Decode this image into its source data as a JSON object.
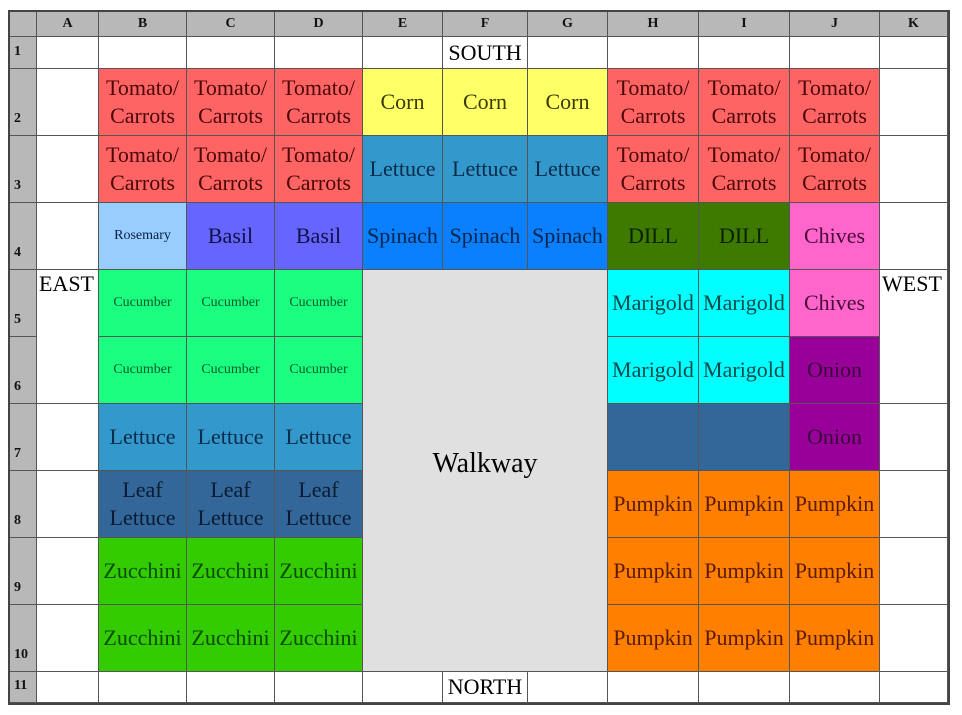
{
  "columns": [
    "A",
    "B",
    "C",
    "D",
    "E",
    "F",
    "G",
    "H",
    "I",
    "J",
    "K"
  ],
  "rows": [
    "1",
    "2",
    "3",
    "4",
    "5",
    "6",
    "7",
    "8",
    "9",
    "10",
    "11"
  ],
  "palette": {
    "tomato": {
      "bg": "#fe6464",
      "fg": "#4a0808"
    },
    "corn": {
      "bg": "#ffff66",
      "fg": "#3a3a00"
    },
    "lettuce": {
      "bg": "#3399cc",
      "fg": "#0a2a4a"
    },
    "rosemary": {
      "bg": "#99ccff",
      "fg": "#0a2040"
    },
    "basil": {
      "bg": "#6666ff",
      "fg": "#10104a"
    },
    "spinach": {
      "bg": "#0a80ff",
      "fg": "#04254a"
    },
    "dill": {
      "bg": "#3f7a00",
      "fg": "#0a2000"
    },
    "chives": {
      "bg": "#ff66cc",
      "fg": "#4a0a3a"
    },
    "cucumber": {
      "bg": "#1aff80",
      "fg": "#0a5a2a"
    },
    "marigold": {
      "bg": "#00ffff",
      "fg": "#0a4a4a"
    },
    "steel": {
      "bg": "#336699",
      "fg": "#0a1a30"
    },
    "onion": {
      "bg": "#990099",
      "fg": "#3a003a"
    },
    "zucchini": {
      "bg": "#33cc00",
      "fg": "#0a4a00"
    },
    "pumpkin": {
      "bg": "#ff8000",
      "fg": "#5a1a00"
    },
    "walkway": {
      "bg": "#e0e0e0",
      "fg": "#000000"
    },
    "label": {
      "bg": "#ffffff",
      "fg": "#000000"
    }
  },
  "cells": [
    {
      "ref": "F1",
      "text": "SOUTH",
      "kind": "label"
    },
    {
      "ref": "B2",
      "text": "Tomato/ Carrots",
      "kind": "tomato"
    },
    {
      "ref": "C2",
      "text": "Tomato/ Carrots",
      "kind": "tomato"
    },
    {
      "ref": "D2",
      "text": "Tomato/ Carrots",
      "kind": "tomato"
    },
    {
      "ref": "E2",
      "text": "Corn",
      "kind": "corn"
    },
    {
      "ref": "F2",
      "text": "Corn",
      "kind": "corn"
    },
    {
      "ref": "G2",
      "text": "Corn",
      "kind": "corn"
    },
    {
      "ref": "H2",
      "text": "Tomato/ Carrots",
      "kind": "tomato"
    },
    {
      "ref": "I2",
      "text": "Tomato/ Carrots",
      "kind": "tomato"
    },
    {
      "ref": "J2",
      "text": "Tomato/ Carrots",
      "kind": "tomato"
    },
    {
      "ref": "B3",
      "text": "Tomato/ Carrots",
      "kind": "tomato"
    },
    {
      "ref": "C3",
      "text": "Tomato/ Carrots",
      "kind": "tomato"
    },
    {
      "ref": "D3",
      "text": "Tomato/ Carrots",
      "kind": "tomato"
    },
    {
      "ref": "E3",
      "text": "Lettuce",
      "kind": "lettuce"
    },
    {
      "ref": "F3",
      "text": "Lettuce",
      "kind": "lettuce"
    },
    {
      "ref": "G3",
      "text": "Lettuce",
      "kind": "lettuce"
    },
    {
      "ref": "H3",
      "text": "Tomato/ Carrots",
      "kind": "tomato"
    },
    {
      "ref": "I3",
      "text": "Tomato/ Carrots",
      "kind": "tomato"
    },
    {
      "ref": "J3",
      "text": "Tomato/ Carrots",
      "kind": "tomato"
    },
    {
      "ref": "B4",
      "text": "Rosemary",
      "kind": "rosemary",
      "small": true
    },
    {
      "ref": "C4",
      "text": "Basil",
      "kind": "basil"
    },
    {
      "ref": "D4",
      "text": "Basil",
      "kind": "basil"
    },
    {
      "ref": "E4",
      "text": "Spinach",
      "kind": "spinach"
    },
    {
      "ref": "F4",
      "text": "Spinach",
      "kind": "spinach"
    },
    {
      "ref": "G4",
      "text": "Spinach",
      "kind": "spinach"
    },
    {
      "ref": "H4",
      "text": "DILL",
      "kind": "dill"
    },
    {
      "ref": "I4",
      "text": "DILL",
      "kind": "dill"
    },
    {
      "ref": "J4",
      "text": "Chives",
      "kind": "chives"
    },
    {
      "ref": "A5:A6",
      "text": "EAST",
      "kind": "label",
      "top": true
    },
    {
      "ref": "B5",
      "text": "Cucumber",
      "kind": "cucumber",
      "small": true
    },
    {
      "ref": "C5",
      "text": "Cucumber",
      "kind": "cucumber",
      "small": true
    },
    {
      "ref": "D5",
      "text": "Cucumber",
      "kind": "cucumber",
      "small": true
    },
    {
      "ref": "E5:G10",
      "text": "Walkway",
      "kind": "walkway",
      "walk": true
    },
    {
      "ref": "H5",
      "text": "Marigold",
      "kind": "marigold"
    },
    {
      "ref": "I5",
      "text": "Marigold",
      "kind": "marigold"
    },
    {
      "ref": "J5",
      "text": "Chives",
      "kind": "chives"
    },
    {
      "ref": "K5:K6",
      "text": "WEST",
      "kind": "label",
      "top": true
    },
    {
      "ref": "B6",
      "text": "Cucumber",
      "kind": "cucumber",
      "small": true
    },
    {
      "ref": "C6",
      "text": "Cucumber",
      "kind": "cucumber",
      "small": true
    },
    {
      "ref": "D6",
      "text": "Cucumber",
      "kind": "cucumber",
      "small": true
    },
    {
      "ref": "H6",
      "text": "Marigold",
      "kind": "marigold"
    },
    {
      "ref": "I6",
      "text": "Marigold",
      "kind": "marigold"
    },
    {
      "ref": "J6",
      "text": "Onion",
      "kind": "onion"
    },
    {
      "ref": "B7",
      "text": "Lettuce",
      "kind": "lettuce"
    },
    {
      "ref": "C7",
      "text": "Lettuce",
      "kind": "lettuce"
    },
    {
      "ref": "D7",
      "text": "Lettuce",
      "kind": "lettuce"
    },
    {
      "ref": "H7",
      "text": "",
      "kind": "steel"
    },
    {
      "ref": "I7",
      "text": "",
      "kind": "steel"
    },
    {
      "ref": "J7",
      "text": "Onion",
      "kind": "onion"
    },
    {
      "ref": "B8",
      "text": "Leaf Lettuce",
      "kind": "steel"
    },
    {
      "ref": "C8",
      "text": "Leaf Lettuce",
      "kind": "steel"
    },
    {
      "ref": "D8",
      "text": "Leaf Lettuce",
      "kind": "steel"
    },
    {
      "ref": "H8",
      "text": "Pumpkin",
      "kind": "pumpkin"
    },
    {
      "ref": "I8",
      "text": "Pumpkin",
      "kind": "pumpkin"
    },
    {
      "ref": "J8",
      "text": "Pumpkin",
      "kind": "pumpkin"
    },
    {
      "ref": "B9",
      "text": "Zucchini",
      "kind": "zucchini"
    },
    {
      "ref": "C9",
      "text": "Zucchini",
      "kind": "zucchini"
    },
    {
      "ref": "D9",
      "text": "Zucchini",
      "kind": "zucchini"
    },
    {
      "ref": "H9",
      "text": "Pumpkin",
      "kind": "pumpkin"
    },
    {
      "ref": "I9",
      "text": "Pumpkin",
      "kind": "pumpkin"
    },
    {
      "ref": "J9",
      "text": "Pumpkin",
      "kind": "pumpkin"
    },
    {
      "ref": "B10",
      "text": "Zucchini",
      "kind": "zucchini"
    },
    {
      "ref": "C10",
      "text": "Zucchini",
      "kind": "zucchini"
    },
    {
      "ref": "D10",
      "text": "Zucchini",
      "kind": "zucchini"
    },
    {
      "ref": "H10",
      "text": "Pumpkin",
      "kind": "pumpkin"
    },
    {
      "ref": "I10",
      "text": "Pumpkin",
      "kind": "pumpkin"
    },
    {
      "ref": "J10",
      "text": "Pumpkin",
      "kind": "pumpkin"
    },
    {
      "ref": "F11",
      "text": "NORTH",
      "kind": "label"
    }
  ]
}
